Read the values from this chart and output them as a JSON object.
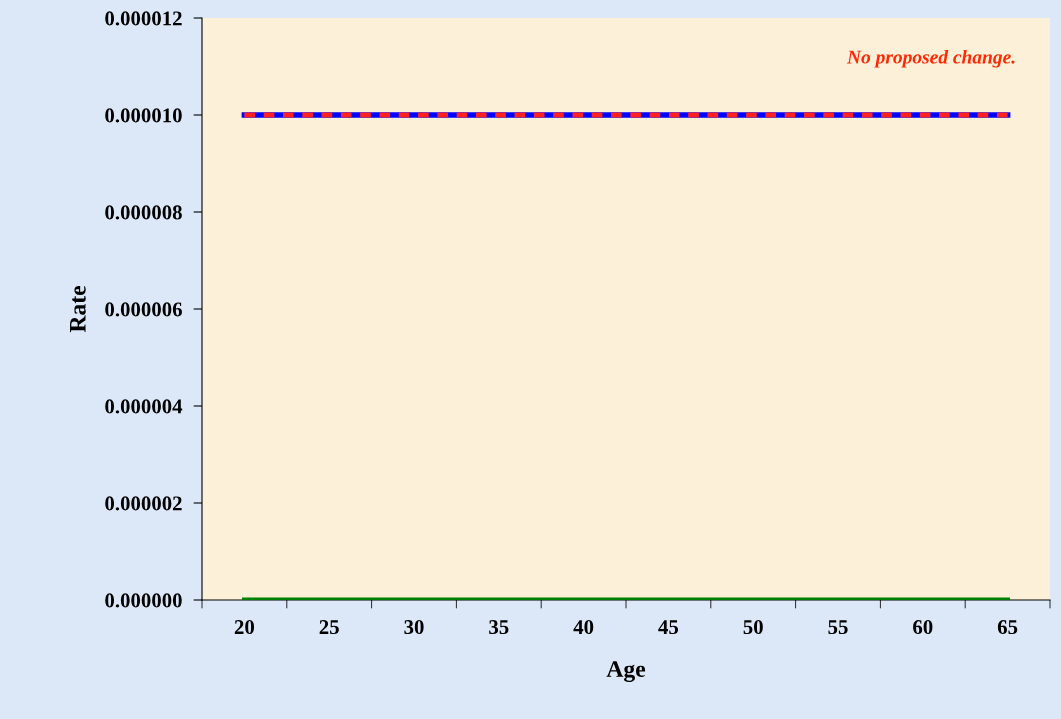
{
  "chart_data": {
    "type": "line",
    "xlabel": "Age",
    "ylabel": "Rate",
    "categories": [
      "20",
      "25",
      "30",
      "35",
      "40",
      "45",
      "50",
      "55",
      "60",
      "65"
    ],
    "series": [
      {
        "color": "#0000ff",
        "values": [
          1e-05,
          1e-05,
          1e-05,
          1e-05,
          1e-05,
          1e-05,
          1e-05,
          1e-05,
          1e-05,
          1e-05
        ],
        "line_style": "solid"
      },
      {
        "color": "#ff2020",
        "values": [
          1e-05,
          1e-05,
          1e-05,
          1e-05,
          1e-05,
          1e-05,
          1e-05,
          1e-05,
          1e-05,
          1e-05
        ],
        "line_style": "dashed"
      },
      {
        "color": "#008000",
        "values": [
          0,
          0,
          0,
          0,
          0,
          0,
          0,
          0,
          0,
          0
        ],
        "line_style": "solid"
      }
    ],
    "ylim": [
      0,
      1.2e-05
    ],
    "yticks": [
      {
        "value": 0,
        "label": "0.000000"
      },
      {
        "value": 2e-06,
        "label": "0.000002"
      },
      {
        "value": 4e-06,
        "label": "0.000004"
      },
      {
        "value": 6e-06,
        "label": "0.000006"
      },
      {
        "value": 8e-06,
        "label": "0.000008"
      },
      {
        "value": 1e-05,
        "label": "0.000010"
      },
      {
        "value": 1.2e-05,
        "label": "0.000012"
      }
    ],
    "annotations": [
      "No proposed change."
    ],
    "grid": false,
    "legend": false,
    "marker": "none"
  }
}
